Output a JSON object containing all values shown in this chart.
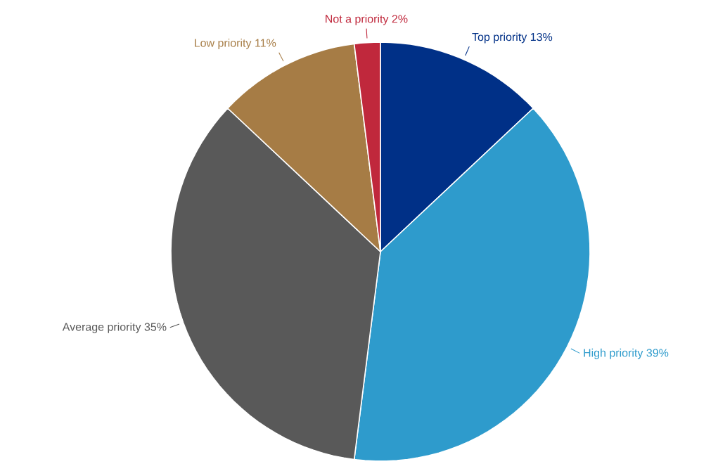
{
  "chart_data": {
    "type": "pie",
    "categories": [
      "Top priority",
      "High priority",
      "Average priority",
      "Low priority",
      "Not a priority"
    ],
    "values": [
      13,
      39,
      35,
      11,
      2
    ],
    "value_labels": [
      "13%",
      "39%",
      "35%",
      "11%",
      "2%"
    ],
    "colors": [
      "#003087",
      "#2e9bcc",
      "#595959",
      "#a67c45",
      "#c0283c"
    ]
  }
}
